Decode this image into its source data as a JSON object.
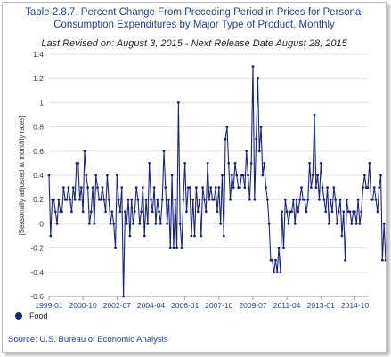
{
  "header": {
    "title_line1": "Table 2.8.7. Percent Change From Preceding Period in Prices for Personal",
    "title_line2": "Consumption Expenditures by Major Type of Product, Monthly",
    "subtitle": "Last Revised on: August 3, 2015 - Next Release Date August 28, 2015"
  },
  "footer": {
    "source": "Source: U.S. Bureau of Economic Analysis"
  },
  "colors": {
    "series": "#1a237e",
    "title": "#1f3f8f",
    "grid": "#e0e0e0",
    "axis": "#999999"
  },
  "chart_data": {
    "type": "line",
    "title": "Table 2.8.7. Percent Change From Preceding Period in Prices for Personal Consumption Expenditures by Major Type of Product, Monthly",
    "xlabel": "",
    "ylabel": "[Seasonally adjusted at monthly rates]",
    "ylim": [
      -0.6,
      1.4
    ],
    "yticks": [
      -0.6,
      -0.4,
      -0.2,
      0,
      0.2,
      0.4,
      0.6,
      0.8,
      1,
      1.2,
      1.4
    ],
    "x_start": "1999-01",
    "x_end": "2015-06",
    "xticks": [
      "1999-01",
      "2000-10",
      "2002-07",
      "2004-04",
      "2006-01",
      "2007-10",
      "2009-07",
      "2011-04",
      "2013-01",
      "2014-10"
    ],
    "grid": true,
    "legend_position": "bottom-left",
    "series": [
      {
        "name": "Food",
        "values": [
          0.4,
          -0.1,
          0.2,
          0.2,
          0.1,
          0.0,
          0.2,
          0.1,
          0.1,
          0.3,
          0.2,
          0.2,
          0.3,
          0.2,
          0.1,
          0.3,
          0.2,
          0.5,
          0.5,
          0.2,
          0.3,
          0.1,
          0.6,
          0.4,
          0.3,
          0.0,
          0.1,
          0.3,
          0.0,
          0.4,
          0.3,
          0.2,
          0.2,
          0.3,
          0.2,
          0.1,
          0.4,
          0.2,
          0.0,
          0.1,
          0.0,
          -0.2,
          0.4,
          0.2,
          0.1,
          0.3,
          -0.6,
          0.1,
          0.0,
          0.2,
          -0.1,
          0.2,
          0.0,
          0.1,
          0.3,
          0.2,
          0.0,
          0.1,
          0.3,
          -0.1,
          0.2,
          0.0,
          0.5,
          0.2,
          0.1,
          0.3,
          0.0,
          0.2,
          0.1,
          0.0,
          0.2,
          0.6,
          0.3,
          0.0,
          0.2,
          -0.2,
          0.4,
          -0.2,
          0.2,
          -0.2,
          1.0,
          0.0,
          -0.2,
          0.2,
          0.5,
          0.1,
          0.3,
          0.3,
          -0.1,
          0.2,
          -0.1,
          0.3,
          0.1,
          0.2,
          -0.1,
          0.3,
          0.2,
          0.1,
          0.5,
          0.2,
          0.3,
          0.2,
          0.2,
          0.3,
          0.1,
          0.3,
          0.0,
          0.4,
          -0.1,
          0.7,
          0.8,
          0.5,
          0.2,
          0.4,
          0.3,
          0.5,
          0.4,
          0.3,
          0.3,
          0.4,
          0.4,
          0.3,
          0.6,
          0.4,
          0.2,
          0.5,
          1.3,
          0.2,
          0.7,
          1.2,
          0.6,
          0.8,
          0.4,
          0.5,
          0.3,
          0.2,
          0.0,
          -0.3,
          -0.3,
          -0.4,
          -0.3,
          -0.4,
          -0.2,
          -0.4,
          0.1,
          -0.2,
          0.2,
          0.1,
          0.0,
          0.1,
          0.1,
          0.2,
          0.0,
          0.2,
          0.1,
          0.2,
          0.3,
          0.2,
          0.2,
          0.1,
          0.2,
          0.5,
          0.3,
          0.4,
          0.9,
          0.3,
          0.4,
          0.2,
          0.5,
          0.3,
          0.2,
          0.1,
          0.3,
          0.0,
          0.2,
          0.1,
          0.3,
          0.2,
          0.0,
          0.1,
          0.2,
          -0.1,
          0.1,
          -0.3,
          0.2,
          0.1,
          0.1,
          0.0,
          0.1,
          0.1,
          0.0,
          0.2,
          0.0,
          0.1,
          0.3,
          0.4,
          0.3,
          0.3,
          0.5,
          0.2,
          0.2,
          0.3,
          0.2,
          0.1,
          0.3,
          0.4,
          -0.3,
          0.0,
          -0.3,
          -0.2,
          0.0,
          0.3
        ]
      }
    ]
  }
}
